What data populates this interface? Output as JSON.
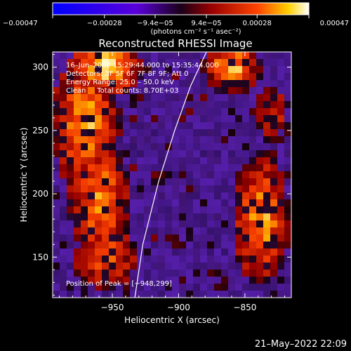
{
  "chart_data": {
    "type": "heatmap",
    "title": "Reconstructed RHESSI Image",
    "xlabel": "Heliocentric X (arcsec)",
    "ylabel": "Heliocentric Y (arcsec)",
    "xlim": [
      -995,
      -815
    ],
    "ylim": [
      118,
      312
    ],
    "x_ticks": [
      -950,
      -900,
      -850
    ],
    "x_tick_labels": [
      "−950",
      "−900",
      "−850"
    ],
    "y_ticks": [
      150,
      200,
      250,
      300
    ],
    "y_tick_labels": [
      "150",
      "200",
      "250",
      "300"
    ],
    "colorbar": {
      "range": [
        -0.00047,
        0.00047
      ],
      "ticks": [
        -0.00047,
        -0.00028,
        -9.4e-05,
        9.4e-05,
        0.00028,
        0.00047
      ],
      "tick_labels": [
        "−0.00047",
        "−0.00028",
        "−9.4e−05",
        "9.4e−05",
        "0.00028",
        "0.00047"
      ],
      "unit_label": "(photons cm⁻² s⁻¹ asec⁻²)"
    },
    "annotations": [
      "16–Jun–2002 15:29:44.000 to 15:35:44.000",
      "Detectors: 3F 5F 6F 7F 8F 9F; Att 0",
      "Energy Range: 25.0 – 50.0 keV",
      "Clean     Total counts: 8.70E+03"
    ],
    "peak_label": "Position of Peak = [−948,299]",
    "peak_position": [
      -948,
      299
    ],
    "limb_curve": {
      "x": [
        -933,
        -927,
        -915,
        -903,
        -891,
        -879
      ],
      "y": [
        118,
        160,
        210,
        250,
        285,
        312
      ]
    },
    "bright_regions": [
      {
        "x": -955,
        "y": 300,
        "rx": 22,
        "ry": 20,
        "intensity": 1.0
      },
      {
        "x": -970,
        "y": 255,
        "rx": 22,
        "ry": 45,
        "intensity": 0.8
      },
      {
        "x": -960,
        "y": 195,
        "rx": 20,
        "ry": 45,
        "intensity": 0.7
      },
      {
        "x": -955,
        "y": 150,
        "rx": 22,
        "ry": 25,
        "intensity": 0.55
      },
      {
        "x": -860,
        "y": 300,
        "rx": 18,
        "ry": 18,
        "intensity": 0.85
      },
      {
        "x": -838,
        "y": 180,
        "rx": 18,
        "ry": 45,
        "intensity": 0.8
      },
      {
        "x": -830,
        "y": 265,
        "rx": 14,
        "ry": 22,
        "intensity": 0.35
      }
    ]
  },
  "footer": {
    "date": "21–May–2022 22:09"
  }
}
